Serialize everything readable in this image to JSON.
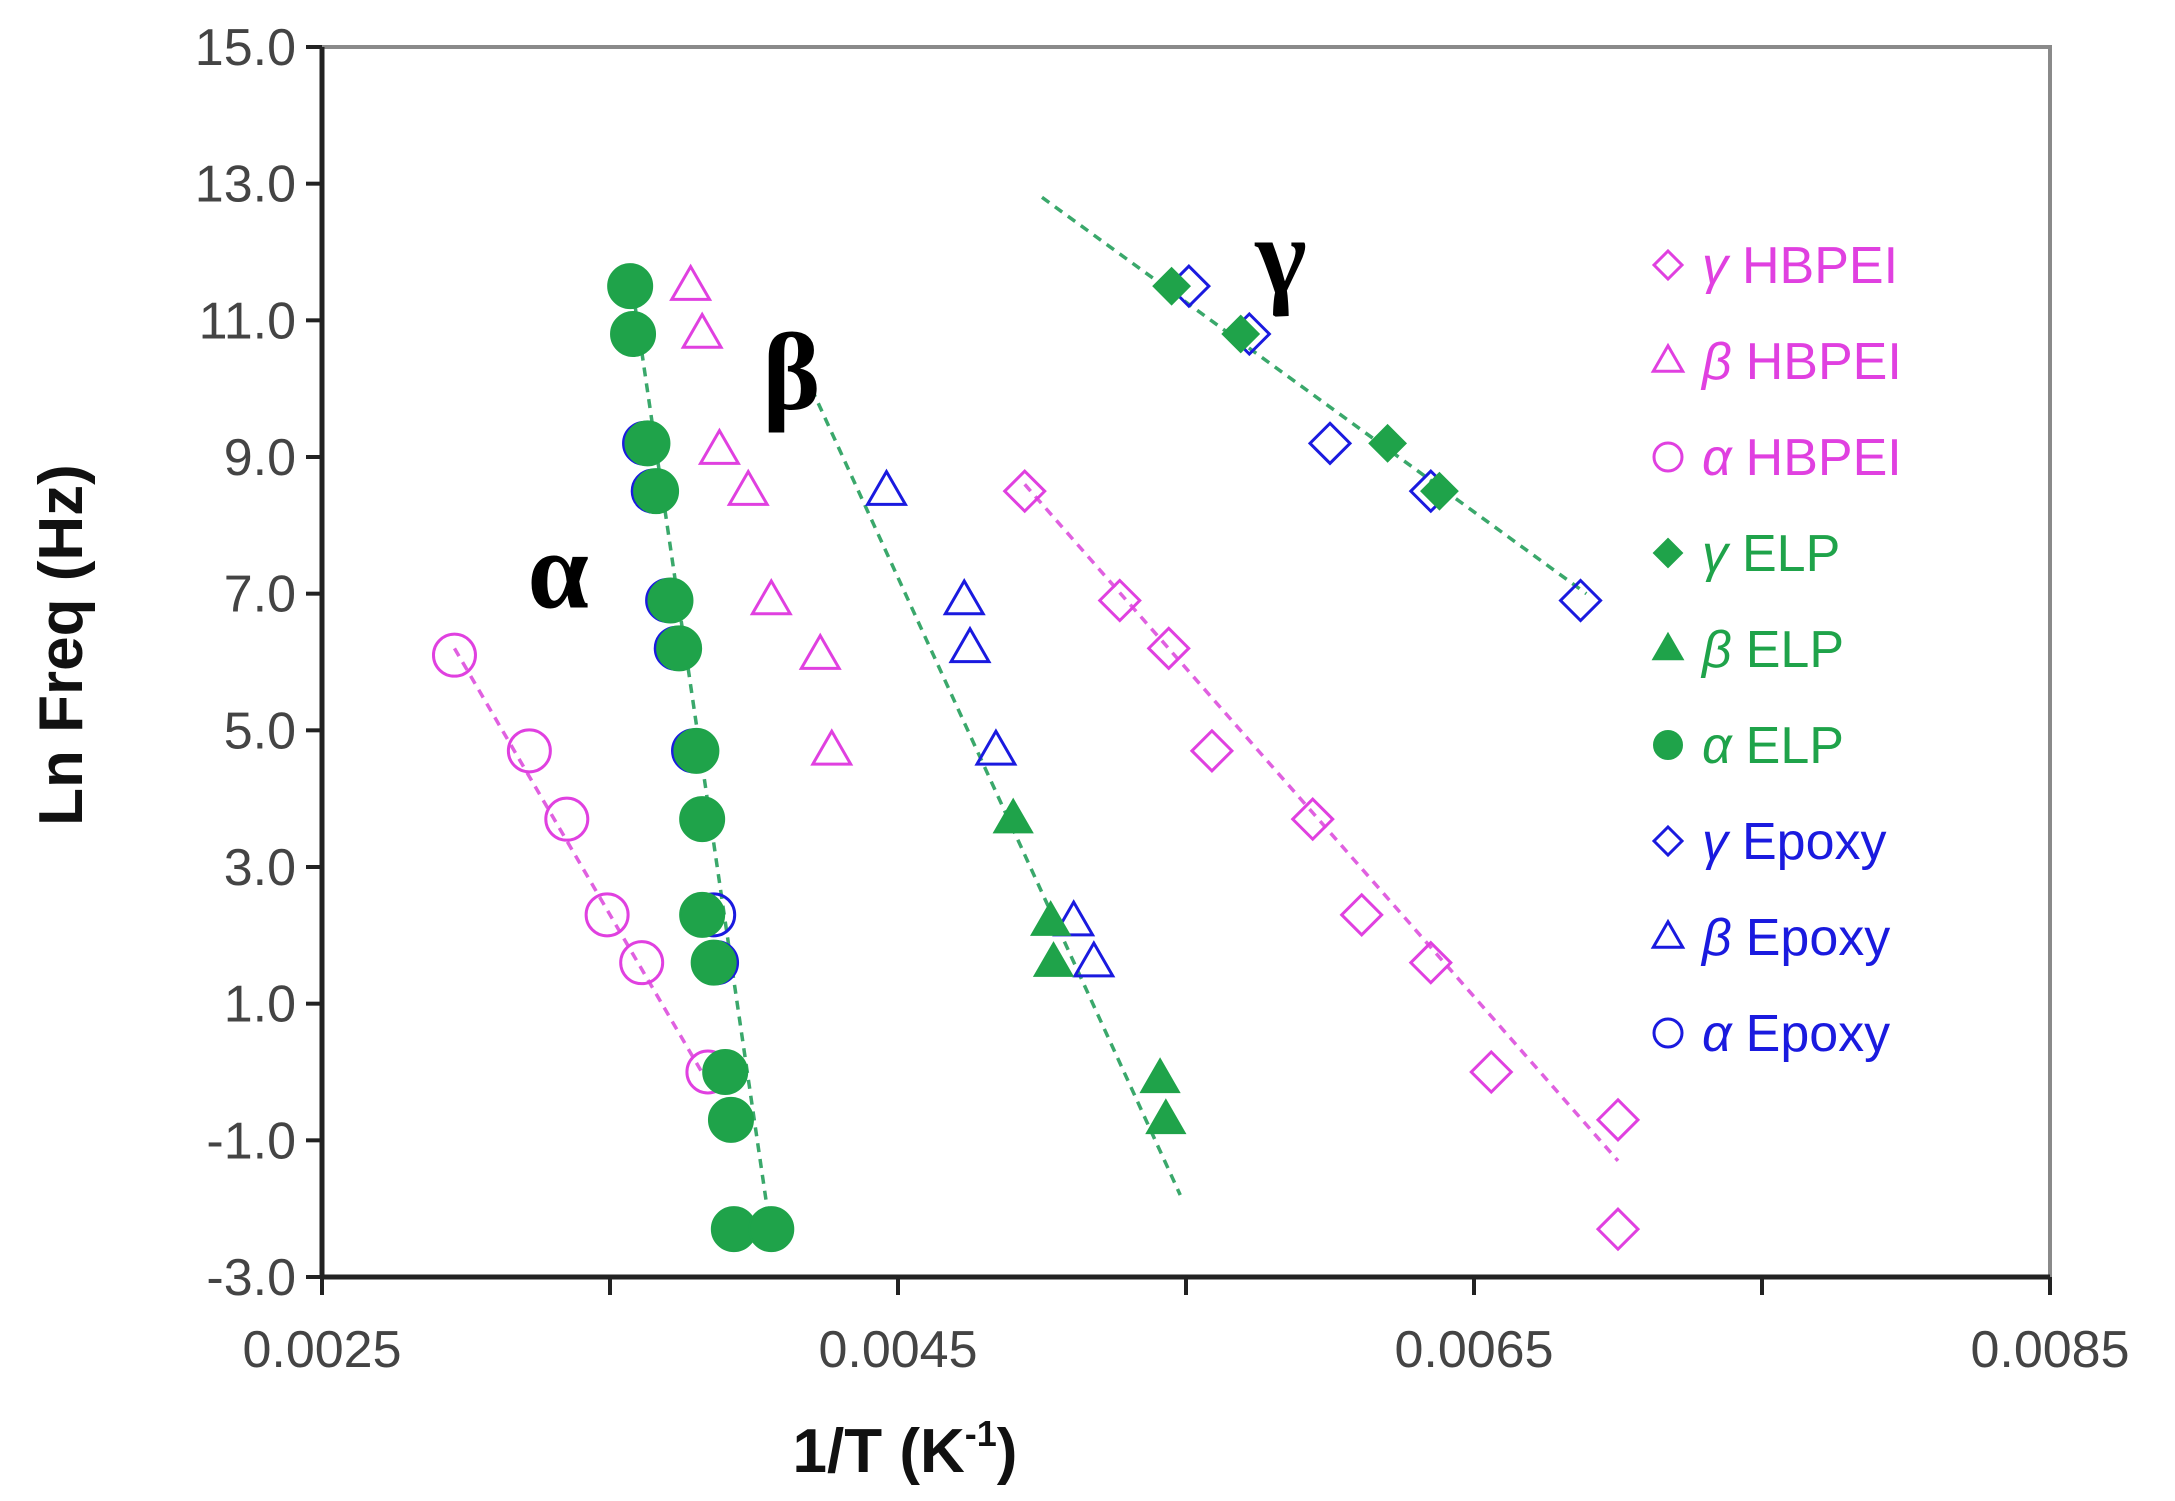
{
  "chart_data": {
    "type": "scatter",
    "xlabel": "1/T (K",
    "xlabel_sup": "-1",
    "xlabel_close": ")",
    "ylabel": "Ln Freq (Hz)",
    "xlim": [
      0.0025,
      0.0085
    ],
    "ylim": [
      -3.0,
      15.0
    ],
    "x_ticks": [
      0.0025,
      0.0035,
      0.0045,
      0.0055,
      0.0065,
      0.0075,
      0.0085
    ],
    "x_tick_labels": [
      "0.0025",
      "",
      "0.0045",
      "",
      "0.0065",
      "",
      "0.0085"
    ],
    "y_ticks": [
      -3.0,
      -1.0,
      1.0,
      3.0,
      5.0,
      7.0,
      9.0,
      11.0,
      13.0,
      15.0
    ],
    "y_tick_labels": [
      "-3.0",
      "-1.0",
      "1.0",
      "3.0",
      "5.0",
      "7.0",
      "9.0",
      "11.0",
      "13.0",
      "15.0"
    ],
    "grid": false,
    "legend_position": "right",
    "annotations": [
      {
        "text": "α",
        "x": 0.00332,
        "y": 6.8
      },
      {
        "text": "β",
        "x": 0.00413,
        "y": 9.7
      },
      {
        "text": "γ",
        "x": 0.00583,
        "y": 11.4
      }
    ],
    "colors": {
      "hbpei": "#e040e0",
      "elp": "#1fa34a",
      "epoxy": "#1a1adf",
      "fit_elp": "#3aa86b",
      "fit_hbpei": "#e060e0"
    },
    "series": [
      {
        "name": "γ HBPEI",
        "greek": "γ",
        "label": "HBPEI",
        "marker": "diamond",
        "filled": false,
        "color": "#e040e0",
        "x": [
          0.00494,
          0.00527,
          0.00544,
          0.00559,
          0.00594,
          0.00611,
          0.00635,
          0.00656,
          0.007,
          0.007
        ],
        "y": [
          8.5,
          6.9,
          6.2,
          4.7,
          3.7,
          2.3,
          1.6,
          0.0,
          -0.7,
          -2.3
        ]
      },
      {
        "name": "β HBPEI",
        "greek": "β",
        "label": "HBPEI",
        "marker": "triangle",
        "filled": false,
        "color": "#e040e0",
        "x": [
          0.00378,
          0.00382,
          0.00388,
          0.00398,
          0.00406,
          0.00423,
          0.00427
        ],
        "y": [
          11.5,
          10.8,
          9.1,
          8.5,
          6.9,
          6.1,
          4.7
        ]
      },
      {
        "name": "α HBPEI",
        "greek": "α",
        "label": "HBPEI",
        "marker": "circle",
        "filled": false,
        "color": "#e040e0",
        "x": [
          0.00296,
          0.00322,
          0.00335,
          0.00349,
          0.00361,
          0.00384,
          0.00406
        ],
        "y": [
          6.1,
          4.7,
          3.7,
          2.3,
          1.6,
          0.0,
          -2.3
        ]
      },
      {
        "name": "γ ELP",
        "greek": "γ",
        "label": "ELP",
        "marker": "diamond",
        "filled": true,
        "color": "#1fa34a",
        "x": [
          0.00545,
          0.00569,
          0.0062,
          0.00638
        ],
        "y": [
          11.5,
          10.8,
          9.2,
          8.5
        ]
      },
      {
        "name": "β ELP",
        "greek": "β",
        "label": "ELP",
        "marker": "triangle",
        "filled": true,
        "color": "#1fa34a",
        "x": [
          0.0049,
          0.00503,
          0.00504,
          0.00541,
          0.00543
        ],
        "y": [
          3.7,
          2.2,
          1.6,
          -0.1,
          -0.7
        ]
      },
      {
        "name": "α ELP",
        "greek": "α",
        "label": "ELP",
        "marker": "circle",
        "filled": true,
        "color": "#1fa34a",
        "x": [
          0.00357,
          0.00358,
          0.00363,
          0.00366,
          0.00371,
          0.00374,
          0.0038,
          0.00382,
          0.00382,
          0.00386,
          0.0039,
          0.00392,
          0.00393,
          0.00406
        ],
        "y": [
          11.5,
          10.8,
          9.2,
          8.5,
          6.9,
          6.2,
          4.7,
          3.7,
          2.3,
          1.6,
          0.0,
          -0.7,
          -2.3,
          -2.3
        ]
      },
      {
        "name": "γ Epoxy",
        "greek": "γ",
        "label": "Epoxy",
        "marker": "diamond",
        "filled": false,
        "color": "#1a1adf",
        "x": [
          0.00551,
          0.00572,
          0.006,
          0.00635,
          0.00687
        ],
        "y": [
          11.5,
          10.8,
          9.2,
          8.5,
          6.9
        ]
      },
      {
        "name": "β Epoxy",
        "greek": "β",
        "label": "Epoxy",
        "marker": "triangle",
        "filled": false,
        "color": "#1a1adf",
        "x": [
          0.00446,
          0.00473,
          0.00475,
          0.00484,
          0.00511,
          0.00518
        ],
        "y": [
          8.5,
          6.9,
          6.2,
          4.7,
          2.2,
          1.6
        ]
      },
      {
        "name": "α Epoxy",
        "greek": "α",
        "label": "Epoxy",
        "marker": "circle",
        "filled": false,
        "color": "#1a1adf",
        "x": [
          0.00362,
          0.00365,
          0.0037,
          0.00373,
          0.00379,
          0.00382,
          0.00386,
          0.00387
        ],
        "y": [
          9.2,
          8.5,
          6.9,
          6.2,
          4.7,
          3.7,
          2.3,
          1.6
        ]
      }
    ],
    "fit_lines": [
      {
        "name": "fit-alpha-elp",
        "color": "#3aa86b",
        "x": [
          0.00357,
          0.00406
        ],
        "y": [
          11.7,
          -2.4
        ]
      },
      {
        "name": "fit-beta-elp",
        "color": "#3aa86b",
        "x": [
          0.0042,
          0.00548
        ],
        "y": [
          10.0,
          -1.8
        ]
      },
      {
        "name": "fit-gamma-elp",
        "color": "#3aa86b",
        "x": [
          0.005,
          0.00689
        ],
        "y": [
          12.8,
          7.0
        ]
      },
      {
        "name": "fit-alpha-hbpei",
        "color": "#e060e0",
        "x": [
          0.00296,
          0.00386
        ],
        "y": [
          6.2,
          -0.3
        ]
      },
      {
        "name": "fit-gamma-hbpei",
        "color": "#e060e0",
        "x": [
          0.00494,
          0.007
        ],
        "y": [
          8.6,
          -1.3
        ]
      }
    ]
  }
}
